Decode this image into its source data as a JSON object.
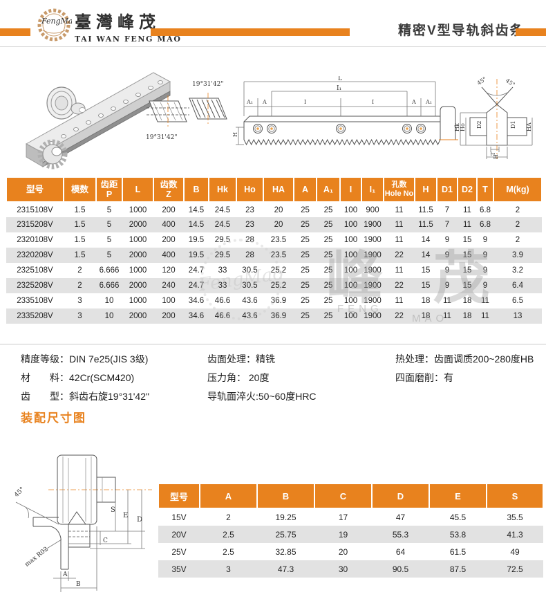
{
  "header": {
    "logo_text": "FengMao",
    "brand_cn": "臺灣峰茂",
    "brand_en": "TAI WAN FENG MAO",
    "page_title": "精密V型导轨斜齿条"
  },
  "colors": {
    "accent": "#E8821E",
    "row_alt": "#E2E2E2"
  },
  "drawings": {
    "helix_angle_top": "19°31'42\"",
    "helix_angle_bottom": "19°31'42\"",
    "side_view": {
      "dim_L": "L",
      "dim_I1": "I₁",
      "dim_row": [
        "A₁",
        "A",
        "I",
        "I",
        "A",
        "A₁"
      ],
      "dim_H": "H"
    },
    "end_view": {
      "angle_left": "45°",
      "angle_right": "45°",
      "dim_Hk": "Hk",
      "dim_Ho": "Ho",
      "dim_D2": "D2",
      "dim_D1": "D1",
      "dim_HA": "HA",
      "dim_T": "T",
      "dim_H": "H"
    }
  },
  "watermark": {
    "logo_script": "FengMao",
    "cn": "峰 茂",
    "en_1": "FENG",
    "en_2": "MAO"
  },
  "main_table": {
    "headers": [
      "型号",
      "模数",
      "齿距\nP",
      "L",
      "齿数\nZ",
      "B",
      "Hk",
      "Ho",
      "HA",
      "A",
      "A₁",
      "I",
      "I₁",
      "孔数\nHole No",
      "H",
      "D1",
      "D2",
      "T",
      "M(kg)"
    ],
    "rows": [
      [
        "2315108V",
        "1.5",
        "5",
        "1000",
        "200",
        "14.5",
        "24.5",
        "23",
        "20",
        "25",
        "25",
        "100",
        "900",
        "11",
        "11.5",
        "7",
        "11",
        "6.8",
        "2"
      ],
      [
        "2315208V",
        "1.5",
        "5",
        "2000",
        "400",
        "14.5",
        "24.5",
        "23",
        "20",
        "25",
        "25",
        "100",
        "1900",
        "11",
        "11.5",
        "7",
        "11",
        "6.8",
        "2"
      ],
      [
        "2320108V",
        "1.5",
        "5",
        "1000",
        "200",
        "19.5",
        "29.5",
        "28",
        "23.5",
        "25",
        "25",
        "100",
        "1900",
        "11",
        "14",
        "9",
        "15",
        "9",
        "2"
      ],
      [
        "2320208V",
        "1.5",
        "5",
        "2000",
        "400",
        "19.5",
        "29.5",
        "28",
        "23.5",
        "25",
        "25",
        "100",
        "1900",
        "22",
        "14",
        "9",
        "15",
        "9",
        "3.9"
      ],
      [
        "2325108V",
        "2",
        "6.666",
        "1000",
        "120",
        "24.7",
        "33",
        "30.5",
        "25.2",
        "25",
        "25",
        "100",
        "1900",
        "11",
        "15",
        "9",
        "15",
        "9",
        "3.2"
      ],
      [
        "2325208V",
        "2",
        "6.666",
        "2000",
        "240",
        "24.7",
        "33",
        "30.5",
        "25.2",
        "25",
        "25",
        "100",
        "1900",
        "22",
        "15",
        "9",
        "15",
        "9",
        "6.4"
      ],
      [
        "2335108V",
        "3",
        "10",
        "1000",
        "100",
        "34.6",
        "46.6",
        "43.6",
        "36.9",
        "25",
        "25",
        "100",
        "1900",
        "11",
        "18",
        "11",
        "18",
        "11",
        "6.5"
      ],
      [
        "2335208V",
        "3",
        "10",
        "2000",
        "200",
        "34.6",
        "46.6",
        "43.6",
        "36.9",
        "25",
        "25",
        "100",
        "1900",
        "22",
        "18",
        "11",
        "18",
        "11",
        "13"
      ]
    ]
  },
  "specs": {
    "column1": [
      "精度等级：DIN 7e25(JIS 3级)",
      "材　　料：42Cr(SCM420)",
      "齿　　型：斜齿右旋19°31'42\""
    ],
    "column2": [
      "齿面处理：精铣",
      "压力角： 20度",
      "导轨面淬火:50~60度HRC"
    ],
    "column3": [
      "热处理：齿面调质200~280度HB",
      "四面磨削：有"
    ]
  },
  "assembly": {
    "section_title": "装配尺寸图",
    "diagram": {
      "angle": "45°",
      "radius_note": "max R02",
      "dim_S": "S",
      "dim_E": "E",
      "dim_D": "D",
      "dim_C": "C",
      "dim_A": "A",
      "dim_B": "B"
    },
    "table": {
      "headers": [
        "型号",
        "A",
        "B",
        "C",
        "D",
        "E",
        "S"
      ],
      "rows": [
        [
          "15V",
          "2",
          "19.25",
          "17",
          "47",
          "45.5",
          "35.5"
        ],
        [
          "20V",
          "2.5",
          "25.75",
          "19",
          "55.3",
          "53.8",
          "41.3"
        ],
        [
          "25V",
          "2.5",
          "32.85",
          "20",
          "64",
          "61.5",
          "49"
        ],
        [
          "35V",
          "3",
          "47.3",
          "30",
          "90.5",
          "87.5",
          "72.5"
        ]
      ]
    }
  }
}
